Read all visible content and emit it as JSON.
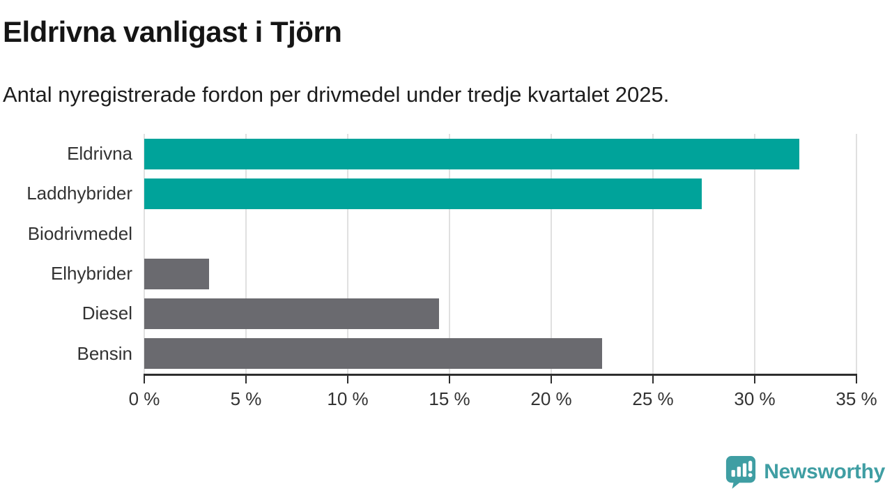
{
  "header": {
    "title": "Eldrivna vanligast i Tjörn",
    "subtitle": "Antal nyregistrerade fordon per drivmedel under tredje kvartalet 2025."
  },
  "chart_data": {
    "type": "bar",
    "orientation": "horizontal",
    "categories": [
      "Eldrivna",
      "Laddhybrider",
      "Biodrivmedel",
      "Elhybrider",
      "Diesel",
      "Bensin"
    ],
    "values": [
      32.2,
      27.4,
      0,
      3.2,
      14.5,
      22.5
    ],
    "unit": "%",
    "bar_colors": [
      "#00a39a",
      "#00a39a",
      "#6a6a6f",
      "#6a6a6f",
      "#6a6a6f",
      "#6a6a6f"
    ],
    "title": "Eldrivna vanligast i Tjörn",
    "xlabel": "",
    "ylabel": "",
    "xlim": [
      0,
      35
    ],
    "tick_step": 5,
    "tick_labels": [
      "0 %",
      "5 %",
      "10 %",
      "15 %",
      "20 %",
      "25 %",
      "30 %",
      "35 %"
    ],
    "grid": "vertical-on",
    "legend": "none"
  },
  "colors": {
    "accent_teal": "#00a39a",
    "neutral_gray": "#6a6a6f",
    "gridline": "#e0e0e0",
    "axis": "#2e2e2e",
    "brand_teal": "#3f9ea3"
  },
  "branding": {
    "logo_icon": "newsworthy-speech-bubble-chart-icon",
    "name": "Newsworthy"
  }
}
